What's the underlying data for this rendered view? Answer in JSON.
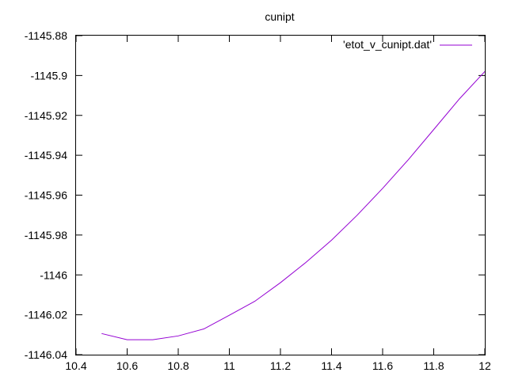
{
  "chart_data": {
    "type": "line",
    "title": "cunipt",
    "xlabel": "",
    "ylabel": "",
    "xlim": [
      10.4,
      12
    ],
    "ylim": [
      -1146.04,
      -1145.88
    ],
    "grid": false,
    "legend_position": "top-right",
    "x_ticks": [
      "10.4",
      "10.6",
      "10.8",
      "11",
      "11.2",
      "11.4",
      "11.6",
      "11.8",
      "12"
    ],
    "x_tick_values": [
      10.4,
      10.6,
      10.8,
      11.0,
      11.2,
      11.4,
      11.6,
      11.8,
      12.0
    ],
    "y_ticks": [
      "-1145.88",
      "-1145.9",
      "-1145.92",
      "-1145.94",
      "-1145.96",
      "-1145.98",
      "-1146",
      "-1146.02",
      "-1146.04"
    ],
    "y_tick_values": [
      -1145.88,
      -1145.9,
      -1145.92,
      -1145.94,
      -1145.96,
      -1145.98,
      -1146.0,
      -1146.02,
      -1146.04
    ],
    "series": [
      {
        "name": "'etot_v_cunipt.dat'",
        "color": "#9400d3",
        "x": [
          10.5,
          10.6,
          10.7,
          10.8,
          10.9,
          11.0,
          11.1,
          11.2,
          11.3,
          11.4,
          11.5,
          11.6,
          11.7,
          11.8,
          11.9,
          12.0
        ],
        "y": [
          -1146.0294,
          -1146.0325,
          -1146.0325,
          -1146.0306,
          -1146.0271,
          -1146.0202,
          -1146.0132,
          -1146.0039,
          -1145.9937,
          -1145.9826,
          -1145.9701,
          -1145.9566,
          -1145.9423,
          -1145.9271,
          -1145.9118,
          -1145.898
        ]
      }
    ]
  }
}
